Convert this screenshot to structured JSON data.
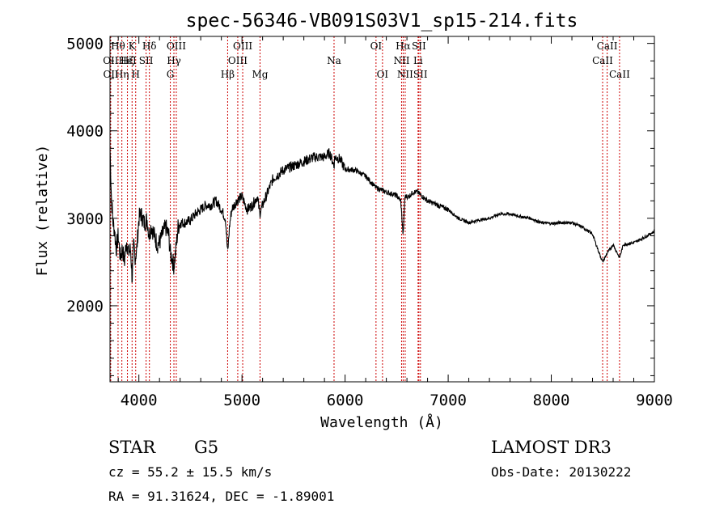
{
  "chart_data": {
    "type": "line",
    "title": "spec-56346-VB091S03V1_sp15-214.fits",
    "xlabel": "Wavelength (Å)",
    "ylabel": "Flux (relative)",
    "xlim": [
      3720,
      9000
    ],
    "ylim": [
      1130,
      5080
    ],
    "xticks": [
      4000,
      5000,
      6000,
      7000,
      8000,
      9000
    ],
    "xtick_labels": [
      "4000",
      "5000",
      "6000",
      "7000",
      "8000",
      "9000"
    ],
    "yticks": [
      2000,
      3000,
      4000,
      5000
    ],
    "ytick_labels": [
      "2000",
      "3000",
      "4000",
      "5000"
    ],
    "series": [
      {
        "name": "flux",
        "x": [
          3720,
          3735,
          3750,
          3765,
          3780,
          3800,
          3820,
          3840,
          3860,
          3880,
          3900,
          3920,
          3935,
          3950,
          3965,
          3980,
          4000,
          4020,
          4050,
          4080,
          4101,
          4120,
          4150,
          4180,
          4200,
          4230,
          4260,
          4290,
          4305,
          4320,
          4340,
          4360,
          4380,
          4400,
          4450,
          4500,
          4550,
          4600,
          4650,
          4700,
          4750,
          4800,
          4840,
          4861,
          4880,
          4900,
          4950,
          5000,
          5050,
          5100,
          5150,
          5172,
          5200,
          5250,
          5300,
          5400,
          5500,
          5600,
          5700,
          5800,
          5850,
          5893,
          5900,
          5950,
          6000,
          6100,
          6200,
          6300,
          6400,
          6500,
          6540,
          6563,
          6580,
          6620,
          6660,
          6700,
          6750,
          6800,
          6900,
          7000,
          7100,
          7200,
          7300,
          7400,
          7500,
          7600,
          7700,
          7800,
          7900,
          8000,
          8100,
          8200,
          8300,
          8400,
          8450,
          8498,
          8542,
          8600,
          8662,
          8700,
          8800,
          8900,
          9000
        ],
        "y": [
          3800,
          3200,
          2950,
          2850,
          2650,
          2800,
          2550,
          2650,
          2500,
          2750,
          2600,
          2650,
          2300,
          2700,
          2550,
          2650,
          3000,
          3050,
          2950,
          2980,
          2800,
          2920,
          2800,
          2700,
          2720,
          2820,
          2900,
          2800,
          2600,
          2550,
          2450,
          2650,
          2900,
          2950,
          2950,
          2980,
          3050,
          3100,
          3150,
          3150,
          3200,
          3100,
          3000,
          2600,
          2920,
          3100,
          3200,
          3250,
          3100,
          3150,
          3250,
          3050,
          3150,
          3300,
          3450,
          3550,
          3600,
          3650,
          3700,
          3700,
          3750,
          3600,
          3700,
          3680,
          3560,
          3550,
          3480,
          3350,
          3300,
          3260,
          3200,
          2800,
          3250,
          3250,
          3300,
          3300,
          3250,
          3200,
          3150,
          3100,
          3000,
          2950,
          2980,
          3000,
          3050,
          3050,
          3020,
          3000,
          2950,
          2940,
          2950,
          2950,
          2900,
          2820,
          2650,
          2500,
          2600,
          2700,
          2550,
          2700,
          2720,
          2780,
          2850
        ]
      }
    ],
    "lines": [
      {
        "name": "Hθ",
        "x": 3798,
        "row": 0
      },
      {
        "name": "OII",
        "x": 3727,
        "row": 1
      },
      {
        "name": "OII",
        "x": 3729,
        "row": 2
      },
      {
        "name": "Hζ",
        "x": 3889,
        "row": 1
      },
      {
        "name": "Hη",
        "x": 3835,
        "row": 2
      },
      {
        "name": "K",
        "x": 3934,
        "row": 0
      },
      {
        "name": "HeI",
        "x": 3889,
        "row": 1
      },
      {
        "name": "H",
        "x": 3969,
        "row": 2
      },
      {
        "name": "Hδ",
        "x": 4102,
        "row": 0
      },
      {
        "name": "SII",
        "x": 4070,
        "row": 1
      },
      {
        "name": "OIII",
        "x": 4363,
        "row": 0
      },
      {
        "name": "Hγ",
        "x": 4340,
        "row": 1
      },
      {
        "name": "G",
        "x": 4305,
        "row": 2
      },
      {
        "name": "OIII",
        "x": 5007,
        "row": 0
      },
      {
        "name": "OIII",
        "x": 4959,
        "row": 1
      },
      {
        "name": "Hβ",
        "x": 4861,
        "row": 2
      },
      {
        "name": "Mg",
        "x": 5175,
        "row": 2
      },
      {
        "name": "Na",
        "x": 5893,
        "row": 1
      },
      {
        "name": "OI",
        "x": 6300,
        "row": 0
      },
      {
        "name": "OI",
        "x": 6363,
        "row": 2
      },
      {
        "name": "Hα",
        "x": 6563,
        "row": 0
      },
      {
        "name": "NII",
        "x": 6548,
        "row": 1
      },
      {
        "name": "NII",
        "x": 6583,
        "row": 2
      },
      {
        "name": "SII",
        "x": 6716,
        "row": 0
      },
      {
        "name": "Li",
        "x": 6708,
        "row": 1
      },
      {
        "name": "SII",
        "x": 6731,
        "row": 2
      },
      {
        "name": "CaII",
        "x": 8542,
        "row": 0
      },
      {
        "name": "CaII",
        "x": 8498,
        "row": 1
      },
      {
        "name": "CaII",
        "x": 8662,
        "row": 2
      }
    ]
  },
  "info": {
    "class_label": "STAR",
    "subclass": "G5",
    "survey": "LAMOST DR3",
    "cz": "cz = 55.2 ± 15.5 km/s",
    "obs_date": "Obs-Date: 20130222",
    "coords": "RA =  91.31624, DEC =  -1.89001"
  },
  "colors": {
    "line_marker": "#cc0000",
    "spectrum": "#000000",
    "axis": "#000000"
  }
}
